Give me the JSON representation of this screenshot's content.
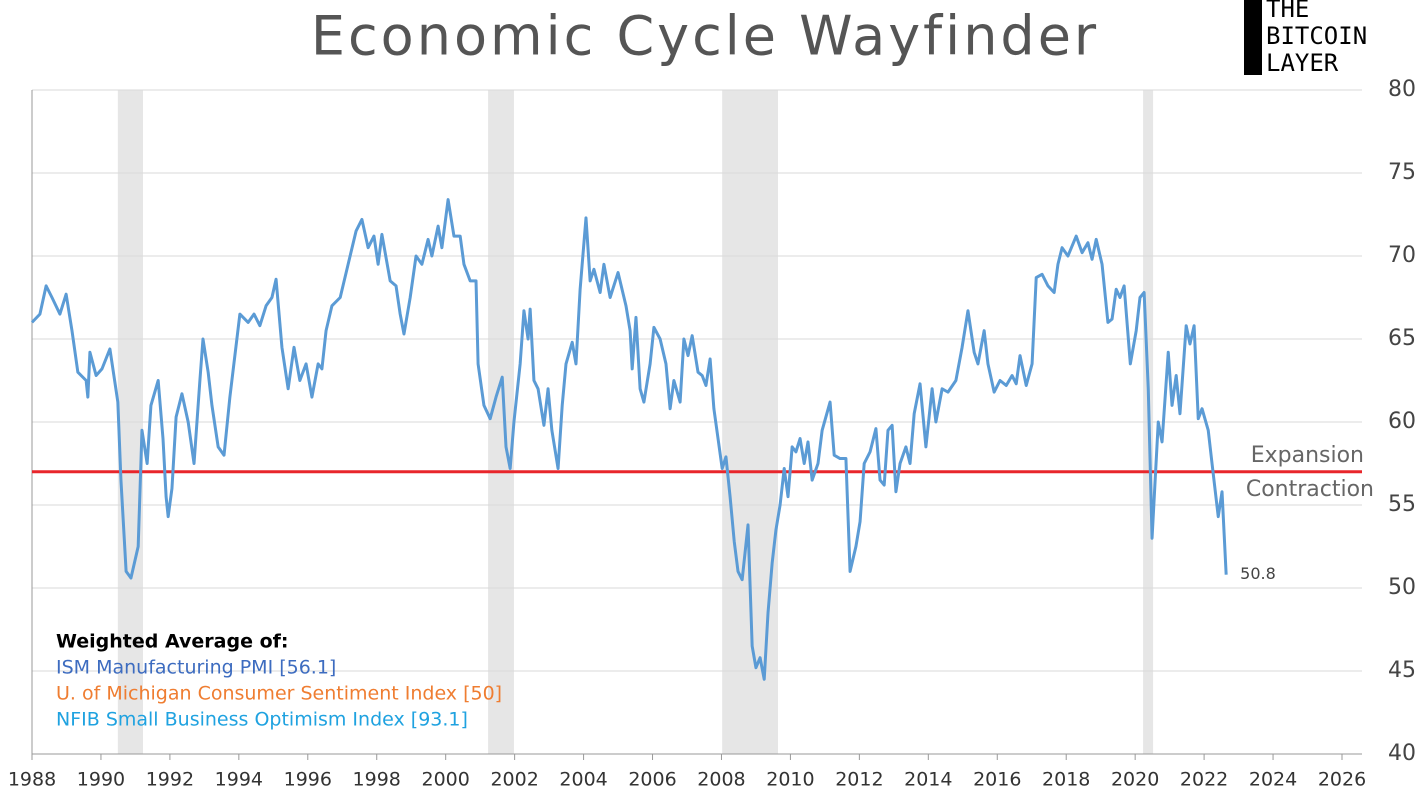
{
  "chart_data": {
    "type": "line",
    "title": "Economic Cycle Wayfinder",
    "logo": [
      "THE",
      "BITCOIN",
      "LAYER"
    ],
    "color": "#5b9bd5",
    "x": [
      1988.0,
      1988.23,
      1988.41,
      1988.58,
      1988.81,
      1988.99,
      1989.16,
      1989.33,
      1989.57,
      1989.62,
      1989.68,
      1989.86,
      1990.03,
      1990.26,
      1990.49,
      1990.58,
      1990.73,
      1990.87,
      1991.08,
      1991.19,
      1991.34,
      1991.45,
      1991.66,
      1991.8,
      1991.89,
      1991.95,
      1992.06,
      1992.18,
      1992.35,
      1992.53,
      1992.7,
      1992.87,
      1992.96,
      1993.11,
      1993.22,
      1993.4,
      1993.57,
      1993.74,
      1994.03,
      1994.27,
      1994.44,
      1994.61,
      1994.79,
      1994.96,
      1995.08,
      1995.25,
      1995.43,
      1995.6,
      1995.77,
      1995.95,
      1996.12,
      1996.3,
      1996.41,
      1996.53,
      1996.7,
      1996.94,
      1997.17,
      1997.4,
      1997.57,
      1997.75,
      1997.92,
      1998.04,
      1998.15,
      1998.39,
      1998.56,
      1998.68,
      1998.79,
      1998.97,
      1999.14,
      1999.31,
      1999.49,
      1999.6,
      1999.78,
      1999.89,
      2000.07,
      2000.24,
      2000.42,
      2000.53,
      2000.71,
      2000.88,
      2000.94,
      2001.11,
      2001.29,
      2001.46,
      2001.64,
      2001.75,
      2001.87,
      2001.98,
      2002.16,
      2002.27,
      2002.39,
      2002.45,
      2002.56,
      2002.68,
      2002.85,
      2002.97,
      2003.08,
      2003.26,
      2003.38,
      2003.49,
      2003.67,
      2003.78,
      2003.9,
      2004.07,
      2004.19,
      2004.3,
      2004.48,
      2004.59,
      2004.77,
      2005.0,
      2005.23,
      2005.35,
      2005.41,
      2005.52,
      2005.64,
      2005.75,
      2005.93,
      2006.04,
      2006.22,
      2006.39,
      2006.51,
      2006.62,
      2006.8,
      2006.91,
      2007.03,
      2007.15,
      2007.32,
      2007.44,
      2007.55,
      2007.67,
      2007.78,
      2007.9,
      2008.02,
      2008.13,
      2008.25,
      2008.37,
      2008.48,
      2008.6,
      2008.77,
      2008.89,
      2009.0,
      2009.12,
      2009.24,
      2009.35,
      2009.47,
      2009.58,
      2009.7,
      2009.82,
      2009.93,
      2010.05,
      2010.16,
      2010.28,
      2010.4,
      2010.51,
      2010.63,
      2010.8,
      2010.92,
      2011.15,
      2011.27,
      2011.44,
      2011.61,
      2011.73,
      2011.9,
      2012.02,
      2012.14,
      2012.31,
      2012.48,
      2012.6,
      2012.72,
      2012.83,
      2012.95,
      2013.06,
      2013.18,
      2013.35,
      2013.47,
      2013.59,
      2013.76,
      2013.93,
      2014.11,
      2014.22,
      2014.4,
      2014.57,
      2014.8,
      2014.98,
      2015.15,
      2015.33,
      2015.44,
      2015.62,
      2015.73,
      2015.91,
      2016.08,
      2016.26,
      2016.43,
      2016.55,
      2016.66,
      2016.84,
      2017.01,
      2017.13,
      2017.3,
      2017.47,
      2017.65,
      2017.76,
      2017.88,
      2018.05,
      2018.29,
      2018.46,
      2018.63,
      2018.75,
      2018.87,
      2019.04,
      2019.21,
      2019.33,
      2019.45,
      2019.56,
      2019.68,
      2019.86,
      2020.03,
      2020.14,
      2020.26,
      2020.38,
      2020.49,
      2020.67,
      2020.78,
      2020.96,
      2021.07,
      2021.19,
      2021.3,
      2021.48,
      2021.59,
      2021.71,
      2021.83,
      2021.94,
      2022.12,
      2022.23,
      2022.41,
      2022.52,
      2022.64
    ],
    "values": [
      66,
      66.5,
      68.2,
      67.5,
      66.5,
      67.7,
      65.5,
      63,
      62.5,
      61.5,
      64.2,
      62.8,
      63.2,
      64.4,
      61.2,
      56.5,
      51,
      50.6,
      52.5,
      59.5,
      57.5,
      61,
      62.5,
      59,
      55.5,
      54.3,
      56,
      60.3,
      61.7,
      60,
      57.5,
      62.5,
      65,
      63,
      61,
      58.5,
      58,
      61.5,
      66.5,
      66,
      66.5,
      65.8,
      67,
      67.5,
      68.6,
      64.5,
      62,
      64.5,
      62.5,
      63.5,
      61.5,
      63.5,
      63.2,
      65.5,
      67,
      67.5,
      69.5,
      71.5,
      72.2,
      70.5,
      71.2,
      69.5,
      71.3,
      68.5,
      68.2,
      66.5,
      65.3,
      67.5,
      70,
      69.5,
      71,
      70,
      71.8,
      70.5,
      73.4,
      71.2,
      71.2,
      69.5,
      68.5,
      68.5,
      63.5,
      61,
      60.2,
      61.5,
      62.7,
      58.5,
      57.2,
      60,
      63.5,
      66.7,
      65,
      66.8,
      62.5,
      62,
      59.8,
      62,
      59.5,
      57.2,
      61,
      63.5,
      64.8,
      63.5,
      68,
      72.3,
      68.5,
      69.2,
      67.8,
      69.5,
      67.5,
      69,
      67,
      65.5,
      63.2,
      66.3,
      62,
      61.2,
      63.5,
      65.7,
      65,
      63.5,
      60.8,
      62.5,
      61.2,
      65,
      64,
      65.2,
      63,
      62.8,
      62.2,
      63.8,
      60.8,
      59,
      57.2,
      57.9,
      55.5,
      52.8,
      51,
      50.5,
      53.8,
      46.5,
      45.2,
      45.8,
      44.5,
      48.5,
      51.5,
      53.5,
      55,
      57.2,
      55.5,
      58.5,
      58.2,
      59,
      57.5,
      58.8,
      56.5,
      57.5,
      59.5,
      61.2,
      58,
      57.8,
      57.8,
      51,
      52.5,
      54,
      57.5,
      58.2,
      59.6,
      56.5,
      56.2,
      59.5,
      59.8,
      55.8,
      57.5,
      58.5,
      57.5,
      60.5,
      62.3,
      58.5,
      62,
      60,
      62,
      61.8,
      62.5,
      64.5,
      66.7,
      64.2,
      63.5,
      65.5,
      63.5,
      61.8,
      62.5,
      62.2,
      62.8,
      62.3,
      64,
      62.2,
      63.5,
      68.7,
      68.9,
      68.2,
      67.8,
      69.5,
      70.5,
      70,
      71.2,
      70.2,
      70.8,
      69.8,
      71,
      69.5,
      66,
      66.2,
      68,
      67.5,
      68.2,
      63.5,
      65.5,
      67.5,
      67.8,
      62,
      53,
      60,
      58.8,
      64.2,
      61,
      62.8,
      60.5,
      65.8,
      64.7,
      65.8,
      60.2,
      60.8,
      59.5,
      57.5,
      54.3,
      55.8,
      50.8
    ],
    "xlim": [
      1988,
      2026
    ],
    "xticks": [
      1988,
      1990,
      1992,
      1994,
      1996,
      1998,
      2000,
      2002,
      2004,
      2006,
      2008,
      2010,
      2012,
      2014,
      2016,
      2018,
      2020,
      2022,
      2024,
      2026
    ],
    "ylim": [
      40,
      80
    ],
    "yticks": [
      40,
      45,
      50,
      55,
      60,
      65,
      70,
      75,
      80
    ],
    "grid": true,
    "shaded_periods": [
      [
        1990.49,
        1991.22
      ],
      [
        2001.23,
        2001.98
      ],
      [
        2008.02,
        2009.64
      ],
      [
        2020.23,
        2020.52
      ]
    ],
    "threshold": {
      "value": 57,
      "color": "#e8262b",
      "above_label": "Expansion",
      "below_label": "Contraction"
    },
    "legend_title": "Weighted Average of:",
    "components": [
      {
        "label": "ISM Manufacturing PMI [56.1]",
        "color": "#3d6cc0"
      },
      {
        "label": "U. of Michigan Consumer Sentiment Index [50]",
        "color": "#ef7d31"
      },
      {
        "label": "NFIB Small Business Optimism Index [93.1]",
        "color": "#1fa2e0"
      }
    ]
  }
}
